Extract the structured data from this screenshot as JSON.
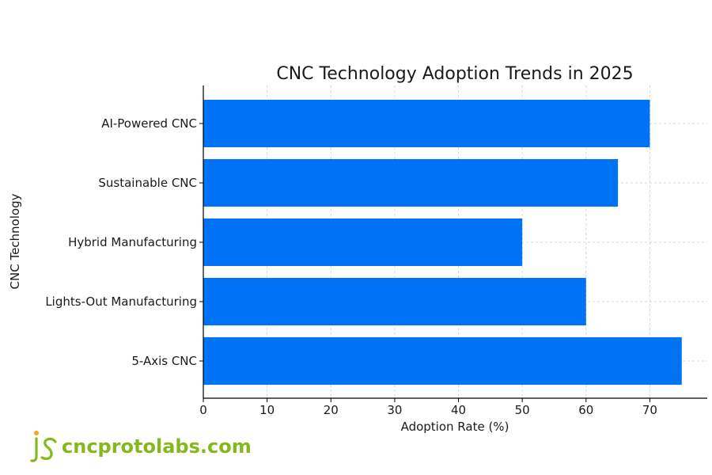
{
  "chart_data": {
    "type": "bar",
    "orientation": "horizontal",
    "title": "CNC Technology Adoption Trends in 2025",
    "xlabel": "Adoption Rate (%)",
    "ylabel": "CNC Technology",
    "categories": [
      "AI-Powered CNC",
      "Sustainable CNC",
      "Hybrid Manufacturing",
      "Lights-Out Manufacturing",
      "5-Axis CNC"
    ],
    "values": [
      70,
      65,
      50,
      60,
      75
    ],
    "xlim": [
      0,
      79
    ],
    "xticks": [
      0,
      10,
      20,
      30,
      40,
      50,
      60,
      70
    ],
    "grid": true,
    "bar_color": "#0073f5"
  },
  "brand": {
    "site": "cncprotolabs.com",
    "logo_color": "#84b91e",
    "logo_dot_color": "#f5a623"
  }
}
